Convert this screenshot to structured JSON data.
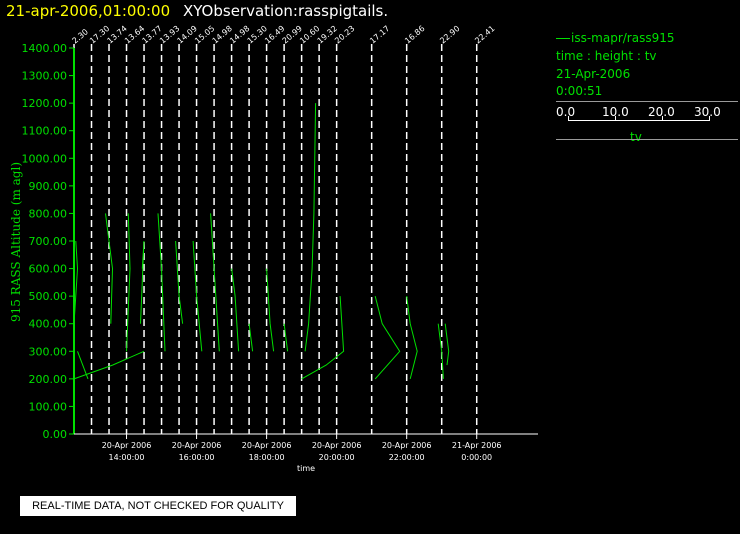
{
  "title": {
    "time": "21-apr-2006,01:00:00",
    "name": "XYObservation:rasspigtails."
  },
  "legend": {
    "series_line": "iss-mapr/rass915",
    "vars": "time : height : tv",
    "date": "21-Apr-2006",
    "time": "0:00:51",
    "scale_ticks": [
      "0.0",
      "10.0",
      "20.0",
      "30.0"
    ],
    "scale_label": "tv"
  },
  "notice": "REAL-TIME DATA, NOT CHECKED FOR QUALITY",
  "colors": {
    "axis": "#00e000",
    "trace": "#00e000",
    "profile_line": "#ffffff",
    "bg": "#000000"
  },
  "chart_data": {
    "type": "line",
    "title": "21-apr-2006,01:00:00  XYObservation:rasspigtails.",
    "ylabel": "915 RASS Altitude (m agl)",
    "xlabel": "time",
    "ylim": [
      0,
      1400
    ],
    "yticks": [
      "0.00",
      "100.00",
      "200.00",
      "300.00",
      "400.00",
      "500.00",
      "600.00",
      "700.00",
      "800.00",
      "900.00",
      "1000.00",
      "1100.00",
      "1200.00",
      "1300.00",
      "1400.00"
    ],
    "xrange_hours": [
      12.5,
      25.75
    ],
    "xticks": [
      {
        "hour": 14,
        "date": "20-Apr 2006",
        "time": "14:00:00"
      },
      {
        "hour": 16,
        "date": "20-Apr 2006",
        "time": "16:00:00"
      },
      {
        "hour": 18,
        "date": "20-Apr 2006",
        "time": "18:00:00"
      },
      {
        "hour": 20,
        "date": "20-Apr 2006",
        "time": "20:00:00"
      },
      {
        "hour": 22,
        "date": "20-Apr 2006",
        "time": "22:00:00"
      },
      {
        "hour": 24,
        "date": "21-Apr 2006",
        "time": "0:00:00"
      }
    ],
    "profiles": [
      {
        "hour": 12.5,
        "label": "2.30",
        "points": [
          [
            12.5,
            200
          ],
          [
            12.5,
            400
          ],
          [
            12.6,
            600
          ],
          [
            12.55,
            700
          ]
        ]
      },
      {
        "hour": 13.0,
        "label": "17.30",
        "points": [
          [
            12.6,
            300
          ],
          [
            12.9,
            200
          ]
        ]
      },
      {
        "hour": 13.5,
        "label": "13.74",
        "points": [
          [
            12.5,
            200
          ],
          [
            13.6,
            250
          ],
          [
            14.5,
            300
          ]
        ]
      },
      {
        "hour": 14.0,
        "label": "13.64",
        "points": [
          [
            13.4,
            800
          ],
          [
            13.6,
            600
          ],
          [
            13.55,
            400
          ]
        ]
      },
      {
        "hour": 14.5,
        "label": "13.77",
        "points": [
          [
            14.0,
            300
          ],
          [
            14.1,
            600
          ],
          [
            14.05,
            800
          ]
        ]
      },
      {
        "hour": 15.0,
        "label": "13.93",
        "points": [
          [
            14.4,
            400
          ],
          [
            14.5,
            700
          ],
          [
            14.45,
            600
          ]
        ]
      },
      {
        "hour": 15.5,
        "label": "14.09",
        "points": [
          [
            14.9,
            800
          ],
          [
            15.0,
            600
          ],
          [
            15.1,
            300
          ]
        ]
      },
      {
        "hour": 16.0,
        "label": "15.05",
        "points": [
          [
            15.4,
            700
          ],
          [
            15.5,
            500
          ],
          [
            15.6,
            400
          ]
        ]
      },
      {
        "hour": 16.5,
        "label": "14.98",
        "points": [
          [
            15.9,
            700
          ],
          [
            16.0,
            500
          ],
          [
            16.15,
            300
          ]
        ]
      },
      {
        "hour": 17.0,
        "label": "14.98",
        "points": [
          [
            16.4,
            800
          ],
          [
            16.5,
            600
          ],
          [
            16.65,
            300
          ]
        ]
      },
      {
        "hour": 17.5,
        "label": "15.30",
        "points": [
          [
            17.0,
            600
          ],
          [
            17.1,
            500
          ],
          [
            17.2,
            300
          ]
        ]
      },
      {
        "hour": 18.0,
        "label": "16.49",
        "points": [
          [
            17.5,
            400
          ],
          [
            17.6,
            300
          ]
        ]
      },
      {
        "hour": 18.5,
        "label": "20.99",
        "points": [
          [
            18.0,
            600
          ],
          [
            18.1,
            400
          ],
          [
            18.2,
            300
          ]
        ]
      },
      {
        "hour": 19.0,
        "label": "10.60",
        "points": [
          [
            18.5,
            400
          ],
          [
            18.6,
            300
          ]
        ]
      },
      {
        "hour": 19.5,
        "label": "19.32",
        "points": [
          [
            19.1,
            300
          ],
          [
            19.2,
            400
          ],
          [
            19.3,
            600
          ],
          [
            19.35,
            800
          ],
          [
            19.4,
            1200
          ]
        ]
      },
      {
        "hour": 20.0,
        "label": "20.23",
        "points": [
          [
            19.0,
            200
          ],
          [
            19.7,
            250
          ],
          [
            20.2,
            300
          ],
          [
            20.1,
            500
          ]
        ]
      },
      {
        "hour": 21.0,
        "label": "17.17",
        "points": [
          [
            21.1,
            500
          ],
          [
            21.3,
            400
          ],
          [
            21.8,
            300
          ],
          [
            21.1,
            200
          ]
        ]
      },
      {
        "hour": 22.0,
        "label": "16.86",
        "points": [
          [
            22.0,
            500
          ],
          [
            22.1,
            400
          ],
          [
            22.3,
            300
          ],
          [
            22.1,
            200
          ]
        ]
      },
      {
        "hour": 23.0,
        "label": "22.90",
        "points": [
          [
            22.9,
            400
          ],
          [
            23.0,
            300
          ],
          [
            23.05,
            200
          ]
        ]
      },
      {
        "hour": 24.0,
        "label": "22.41",
        "points": [
          [
            23.1,
            400
          ],
          [
            23.2,
            300
          ],
          [
            23.15,
            250
          ]
        ]
      }
    ]
  }
}
